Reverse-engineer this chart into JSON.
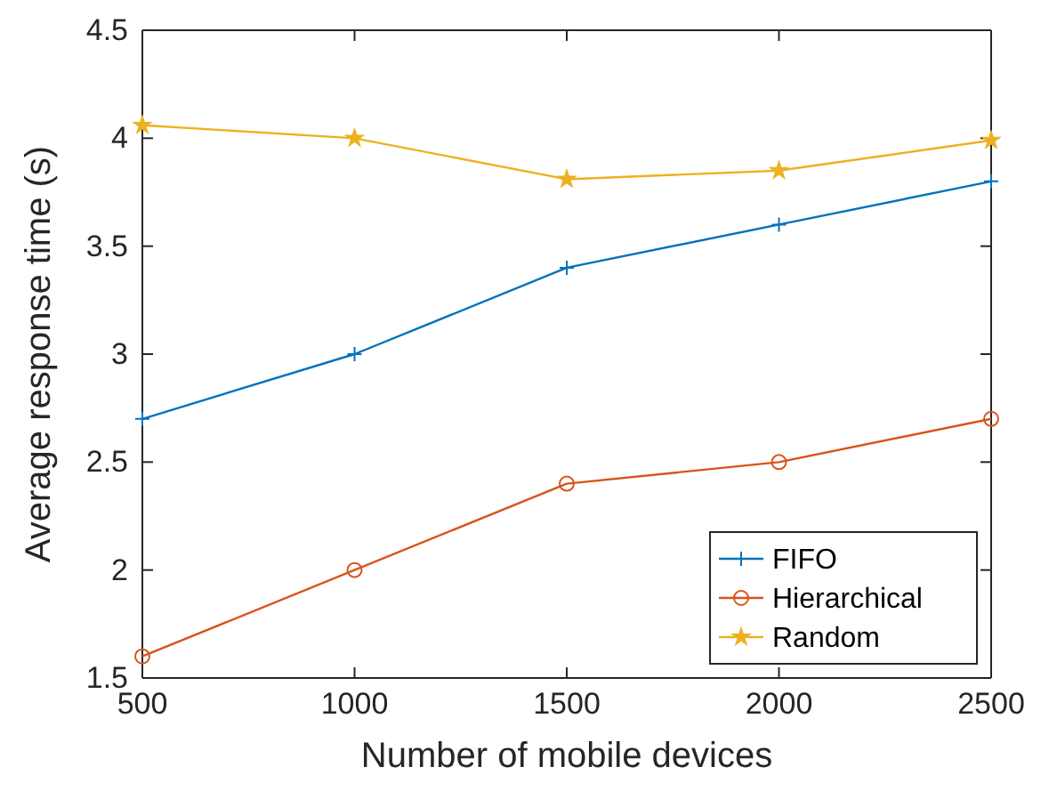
{
  "chart_data": {
    "type": "line",
    "xlabel": "Number of mobile devices",
    "ylabel": "Average response time (s)",
    "x": [
      500,
      1000,
      1500,
      2000,
      2500
    ],
    "xlim": [
      500,
      2500
    ],
    "xticks": [
      500,
      1000,
      1500,
      2000,
      2500
    ],
    "ylim": [
      1.5,
      4.5
    ],
    "yticks": [
      1.5,
      2,
      2.5,
      3,
      3.5,
      4,
      4.5
    ],
    "grid": false,
    "legend": "bottom right",
    "series": [
      {
        "name": "FIFO",
        "color": "#0072bd",
        "marker": "cross",
        "values": [
          2.7,
          3.0,
          3.4,
          3.6,
          3.8
        ]
      },
      {
        "name": "Hierarchical",
        "color": "#d95319",
        "marker": "circle",
        "values": [
          1.6,
          2.0,
          2.4,
          2.5,
          2.7
        ]
      },
      {
        "name": "Random",
        "color": "#edb120",
        "marker": "star",
        "values": [
          4.06,
          4.0,
          3.81,
          3.85,
          3.99
        ]
      }
    ]
  }
}
